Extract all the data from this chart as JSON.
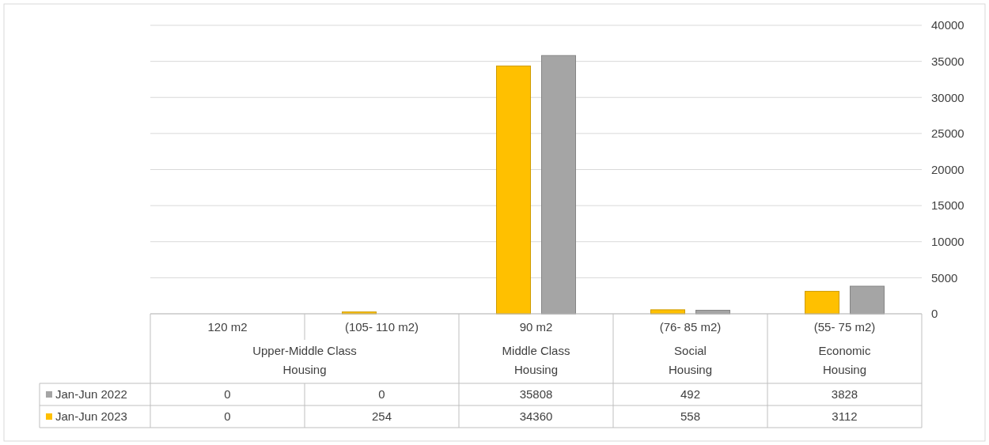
{
  "chart_data": {
    "type": "bar",
    "categories": [
      "120 m2",
      "(105-  110 m2)",
      "90 m2",
      "(76- 85 m2)",
      "(55- 75 m2)"
    ],
    "series": [
      {
        "name": "Jan-Jun 2023",
        "color": "#ffc000",
        "values": [
          0,
          254,
          34360,
          558,
          3112
        ]
      },
      {
        "name": "Jan-Jun 2022",
        "color": "#a5a5a5",
        "values": [
          0,
          0,
          35808,
          492,
          3828
        ]
      }
    ],
    "annotations": [
      "Upper-Middle Class Housing",
      "Middle Class Housing",
      "Social Housing",
      "Economic Housing"
    ],
    "ylim": [
      0,
      40000
    ],
    "yticks": [
      0,
      5000,
      10000,
      15000,
      20000,
      25000,
      30000,
      35000,
      40000
    ],
    "grid": "y",
    "legend": "bottom",
    "data_labels": true
  }
}
